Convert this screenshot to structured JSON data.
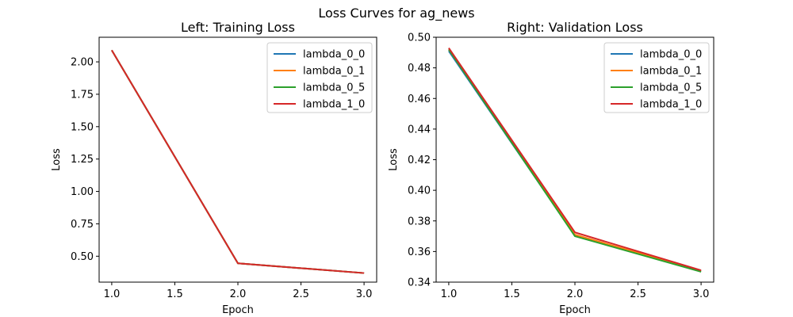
{
  "figure": {
    "suptitle": "Loss Curves for ag_news"
  },
  "chart_data": [
    {
      "type": "line",
      "title": "Left: Training Loss",
      "xlabel": "Epoch",
      "ylabel": "Loss",
      "xlim": [
        0.9,
        3.1
      ],
      "ylim": [
        0.3,
        2.19
      ],
      "xticks": [
        1.0,
        1.5,
        2.0,
        2.5,
        3.0
      ],
      "xtick_labels": [
        "1.0",
        "1.5",
        "2.0",
        "2.5",
        "3.0"
      ],
      "yticks": [
        0.5,
        0.75,
        1.0,
        1.25,
        1.5,
        1.75,
        2.0
      ],
      "ytick_labels": [
        "0.50",
        "0.75",
        "1.00",
        "1.25",
        "1.50",
        "1.75",
        "2.00"
      ],
      "grid": false,
      "legend_position": "top-right",
      "x": [
        1,
        2,
        3
      ],
      "series": [
        {
          "name": "lambda_0_0",
          "color": "#1f77b4",
          "values": [
            2.09,
            0.445,
            0.37
          ]
        },
        {
          "name": "lambda_0_1",
          "color": "#ff7f0e",
          "values": [
            2.09,
            0.445,
            0.37
          ]
        },
        {
          "name": "lambda_0_5",
          "color": "#2ca02c",
          "values": [
            2.09,
            0.445,
            0.37
          ]
        },
        {
          "name": "lambda_1_0",
          "color": "#d62728",
          "values": [
            2.09,
            0.445,
            0.37
          ]
        }
      ]
    },
    {
      "type": "line",
      "title": "Right: Validation Loss",
      "xlabel": "Epoch",
      "ylabel": "Loss",
      "xlim": [
        0.9,
        3.1
      ],
      "ylim": [
        0.34,
        0.5
      ],
      "xticks": [
        1.0,
        1.5,
        2.0,
        2.5,
        3.0
      ],
      "xtick_labels": [
        "1.0",
        "1.5",
        "2.0",
        "2.5",
        "3.0"
      ],
      "yticks": [
        0.34,
        0.36,
        0.38,
        0.4,
        0.42,
        0.44,
        0.46,
        0.48,
        0.5
      ],
      "ytick_labels": [
        "0.34",
        "0.36",
        "0.38",
        "0.40",
        "0.42",
        "0.44",
        "0.46",
        "0.48",
        "0.50"
      ],
      "grid": false,
      "legend_position": "top-right",
      "x": [
        1,
        2,
        3
      ],
      "series": [
        {
          "name": "lambda_0_0",
          "color": "#1f77b4",
          "values": [
            0.491,
            0.3705,
            0.347
          ]
        },
        {
          "name": "lambda_0_1",
          "color": "#ff7f0e",
          "values": [
            0.492,
            0.371,
            0.3473
          ]
        },
        {
          "name": "lambda_0_5",
          "color": "#2ca02c",
          "values": [
            0.492,
            0.37,
            0.3468
          ]
        },
        {
          "name": "lambda_1_0",
          "color": "#d62728",
          "values": [
            0.493,
            0.3725,
            0.3477
          ]
        }
      ]
    }
  ]
}
